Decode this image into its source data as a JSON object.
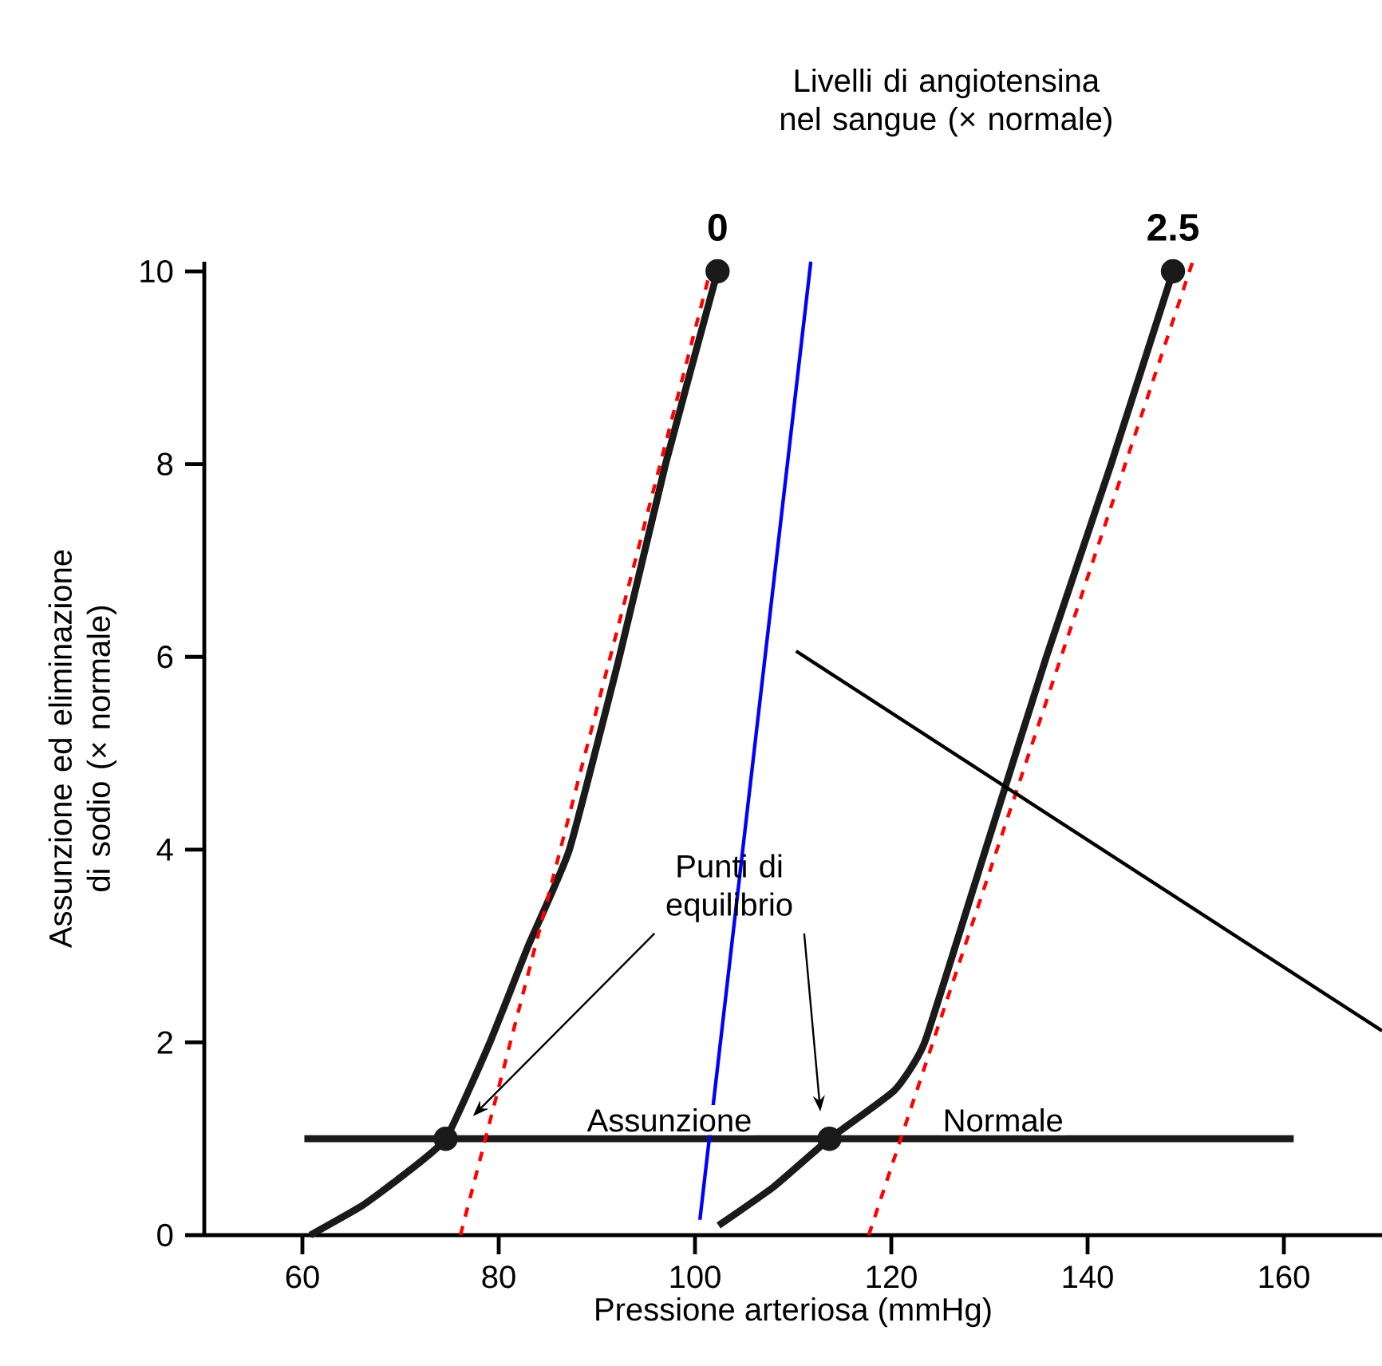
{
  "chart_data": {
    "type": "line",
    "title": "Livelli di angiotensina nel sangue (× normale)",
    "xlabel": "Pressione arteriosa (mmHg)",
    "ylabel": "Assunzione ed eliminazione di sodio (× normale)",
    "xlim": [
      50,
      170
    ],
    "ylim": [
      0,
      10.1
    ],
    "xticks": [
      60,
      80,
      100,
      120,
      140,
      160
    ],
    "yticks": [
      0,
      2,
      4,
      6,
      8,
      10
    ],
    "series": [
      {
        "type": "line",
        "color": "#1a1a1a",
        "x": [
          60.8,
          66,
          70,
          74.6,
          79.1,
          83,
          87.2,
          92.3,
          97,
          102.3
        ],
        "values": [
          0,
          0.3,
          0.6,
          1,
          2,
          3,
          4,
          6,
          8,
          10
        ]
      },
      {
        "type": "line",
        "color": "#1a1a1a",
        "x": [
          102.4,
          108,
          113.7,
          120.3,
          123.4,
          129.6,
          135.8,
          142.4,
          148.7
        ],
        "values": [
          0.1,
          0.5,
          1,
          1.5,
          2,
          4,
          6,
          8,
          10
        ]
      },
      {
        "type": "line",
        "color": "#1a1a1a",
        "x": [
          60.2,
          161
        ],
        "values": [
          1,
          1
        ]
      },
      {
        "type": "scatter",
        "color": "#1a1a1a",
        "marker": "circle",
        "x": [
          74.6,
          113.7,
          102.3,
          148.7
        ],
        "values": [
          1,
          1,
          10,
          10
        ]
      },
      {
        "type": "line",
        "color": "#ff0000",
        "line_style": "dashed",
        "x": [
          76.1,
          101.8
        ],
        "values": [
          0,
          10.1
        ]
      },
      {
        "type": "line",
        "color": "#ff0000",
        "line_style": "dashed",
        "x": [
          117.7,
          150.7
        ],
        "values": [
          0,
          10.1
        ]
      },
      {
        "type": "line",
        "color": "#0000ff",
        "x": [
          100.5,
          111.8
        ],
        "values": [
          0.16,
          10.1
        ]
      },
      {
        "type": "line",
        "color": "#000000",
        "x": [
          110.3,
          170
        ],
        "values": [
          6.06,
          2.12
        ]
      }
    ],
    "annotations": [
      {
        "text": "0",
        "x": 102.3,
        "y": 10
      },
      {
        "text": "2.5",
        "x": 148.7,
        "y": 10
      },
      {
        "text": "Assunzione",
        "x": 97.4,
        "y": 1
      },
      {
        "text": "Normale",
        "x": 131.4,
        "y": 1
      },
      "Punti di equilibrio"
    ]
  }
}
